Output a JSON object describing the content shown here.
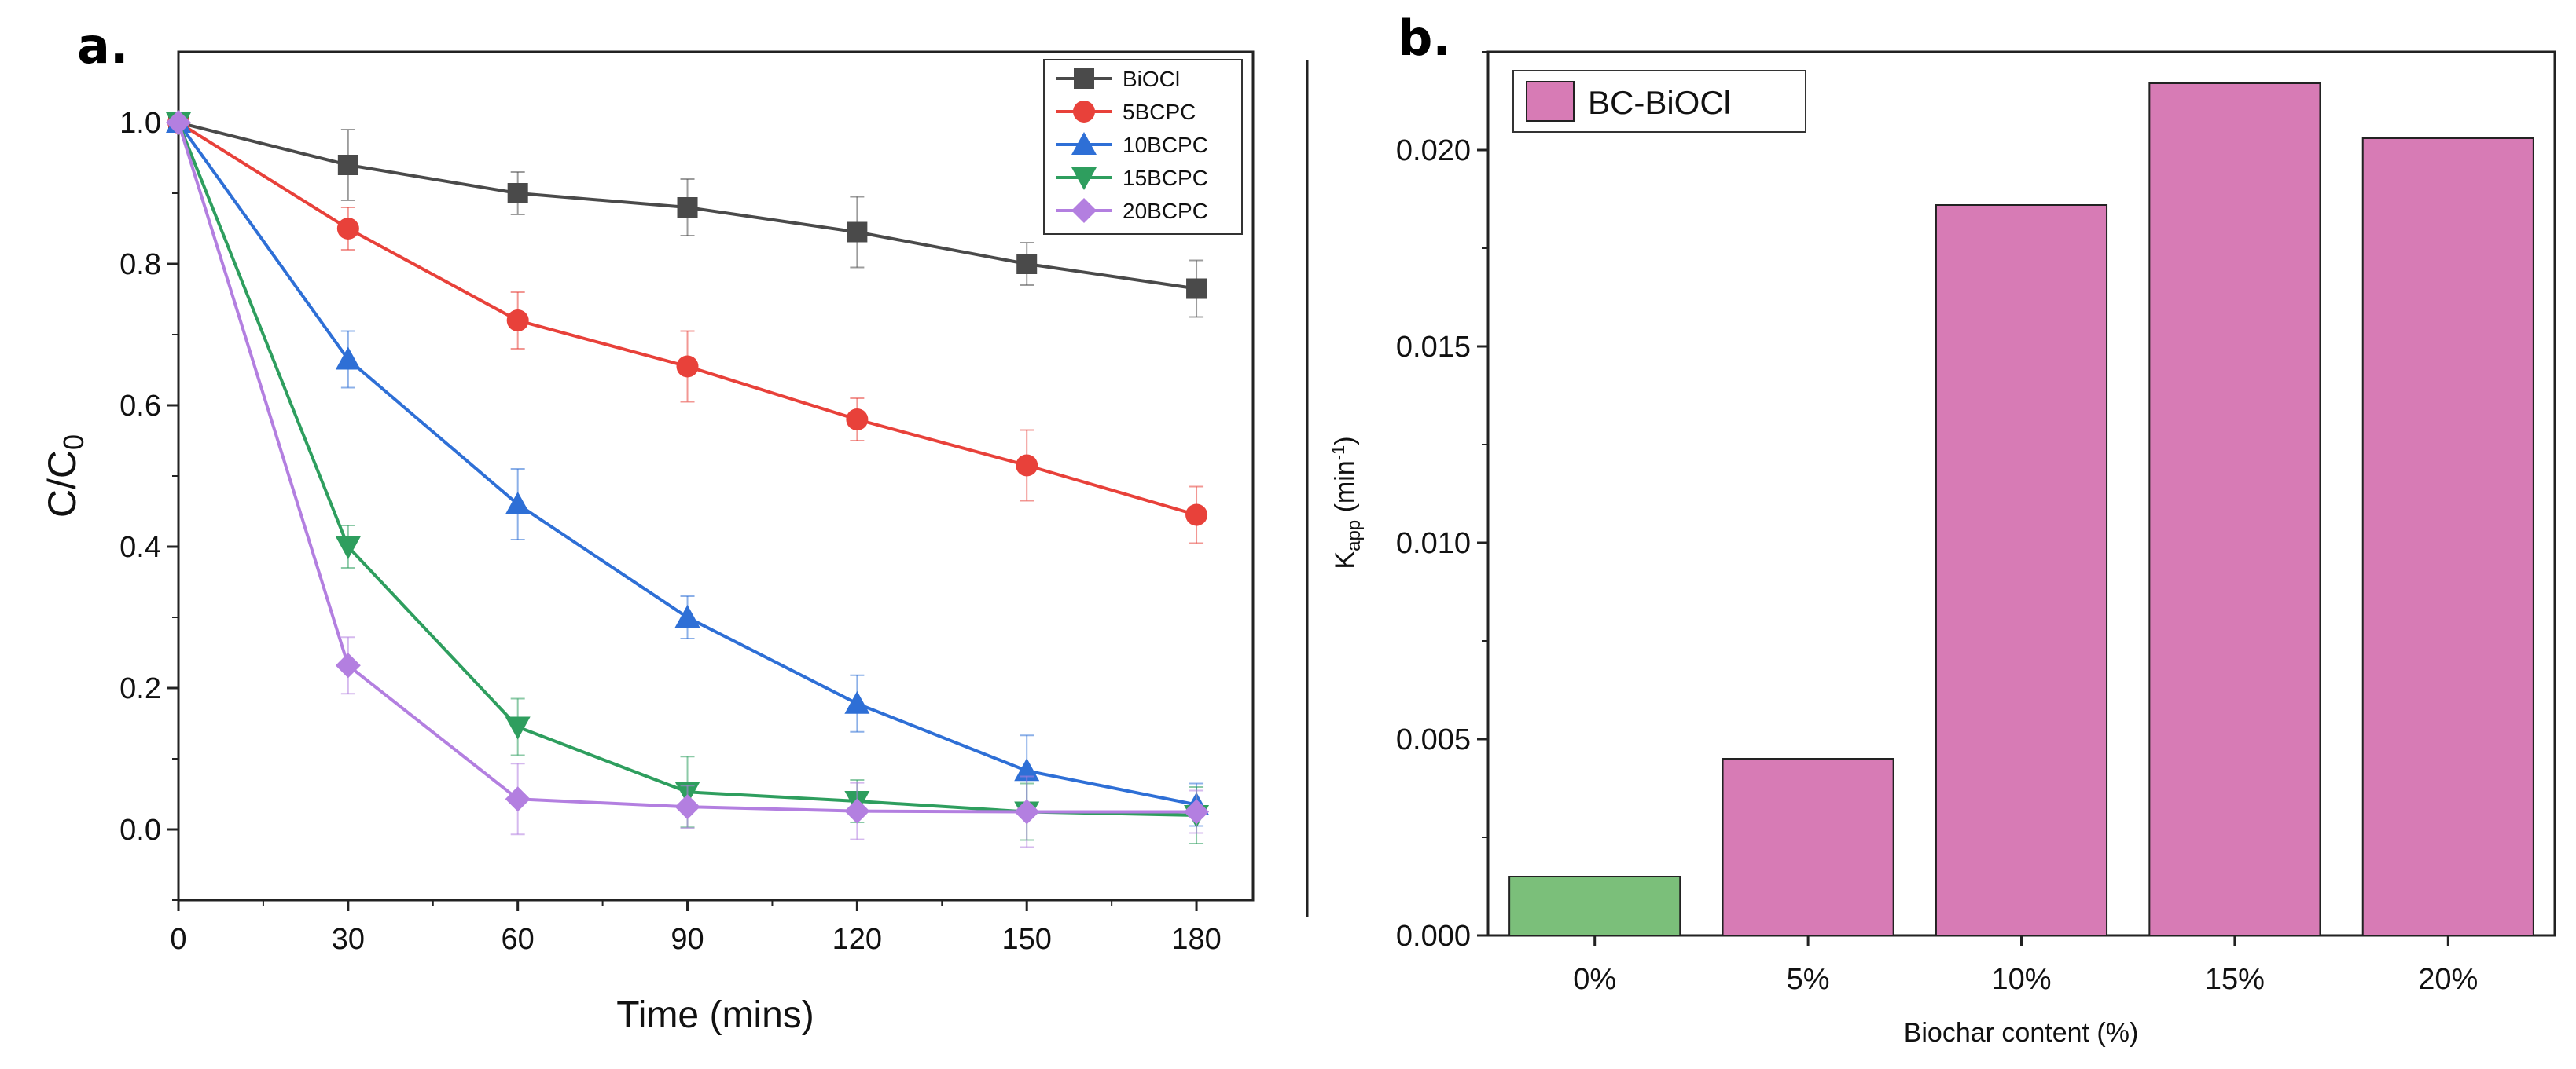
{
  "chart_data": [
    {
      "type": "line",
      "panel_label": "a.",
      "xlabel": "Time (mins)",
      "ylabel_main": "C/C",
      "ylabel_sub": "0",
      "x": [
        0,
        30,
        60,
        90,
        120,
        150,
        180
      ],
      "xlim": [
        0,
        190
      ],
      "ylim": [
        -0.1,
        1.1
      ],
      "xticks": [
        "0",
        "30",
        "60",
        "90",
        "120",
        "150",
        "180"
      ],
      "yticks": [
        "0.0",
        "0.2",
        "0.4",
        "0.6",
        "0.8",
        "1.0"
      ],
      "legend_position": "top-right",
      "series": [
        {
          "name": "BiOCl",
          "color": "#4a4a4a",
          "marker": "square",
          "values": [
            1.0,
            0.94,
            0.9,
            0.88,
            0.845,
            0.8,
            0.765
          ],
          "errors": [
            0,
            0.05,
            0.03,
            0.04,
            0.05,
            0.03,
            0.04
          ]
        },
        {
          "name": "5BCPC",
          "color": "#e8413a",
          "marker": "circle",
          "values": [
            1.0,
            0.85,
            0.72,
            0.655,
            0.58,
            0.515,
            0.445
          ],
          "errors": [
            0,
            0.03,
            0.04,
            0.05,
            0.03,
            0.05,
            0.04
          ]
        },
        {
          "name": "10BCPC",
          "color": "#2e6fd6",
          "marker": "triangle-up",
          "values": [
            1.0,
            0.665,
            0.46,
            0.3,
            0.178,
            0.083,
            0.035
          ],
          "errors": [
            0,
            0.04,
            0.05,
            0.03,
            0.04,
            0.05,
            0.03
          ]
        },
        {
          "name": "15BCPC",
          "color": "#2e9e5e",
          "marker": "triangle-down",
          "values": [
            1.0,
            0.4,
            0.145,
            0.053,
            0.04,
            0.025,
            0.02
          ],
          "errors": [
            0,
            0.03,
            0.04,
            0.05,
            0.03,
            0.04,
            0.04
          ]
        },
        {
          "name": "20BCPC",
          "color": "#b37fe0",
          "marker": "diamond",
          "values": [
            1.0,
            0.232,
            0.043,
            0.032,
            0.026,
            0.025,
            0.025
          ],
          "errors": [
            0,
            0.04,
            0.05,
            0.03,
            0.04,
            0.05,
            0.03
          ]
        }
      ]
    },
    {
      "type": "bar",
      "panel_label": "b.",
      "xlabel": "Biochar content (%)",
      "ylabel_main": "K",
      "ylabel_sub": "app",
      "ylabel_unit_pre": " (min",
      "ylabel_unit_sup": "-1",
      "ylabel_unit_post": ")",
      "categories": [
        "0%",
        "5%",
        "10%",
        "15%",
        "20%"
      ],
      "values": [
        0.0015,
        0.0045,
        0.0186,
        0.0217,
        0.0203
      ],
      "bar_colors": [
        "#7bbf7a",
        "#d77bb5",
        "#d77bb5",
        "#d77bb5",
        "#d77bb5"
      ],
      "ylim": [
        0,
        0.0225
      ],
      "yticks": [
        "0.000",
        "0.005",
        "0.010",
        "0.015",
        "0.020"
      ],
      "legend": "BC-BiOCl",
      "legend_color": "#d77bb5",
      "legend_position": "top-left"
    }
  ]
}
